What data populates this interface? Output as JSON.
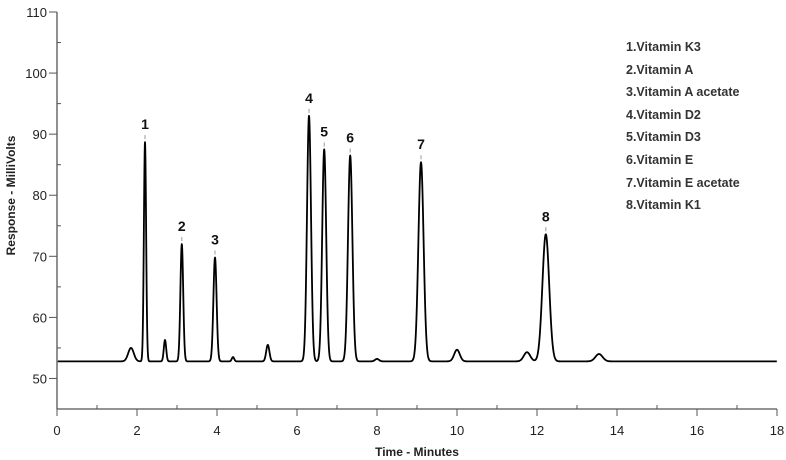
{
  "chart_data": {
    "type": "line",
    "title": "",
    "xlabel": "Time - Minutes",
    "ylabel": "Response - MilliVolts",
    "xlim": [
      0,
      18
    ],
    "ylim": [
      45,
      110
    ],
    "xticks": [
      0,
      2,
      4,
      6,
      8,
      10,
      12,
      14,
      16,
      18
    ],
    "yticks": [
      50,
      60,
      70,
      80,
      90,
      100,
      110
    ],
    "grid": false,
    "baseline": 52.8,
    "line_color": "#000000",
    "peaks": [
      {
        "label": "1",
        "x": 2.2,
        "y": 88.7
      },
      {
        "label": "2",
        "x": 3.12,
        "y": 72.0
      },
      {
        "label": "3",
        "x": 3.95,
        "y": 69.8
      },
      {
        "label": "4",
        "x": 6.3,
        "y": 93.0
      },
      {
        "label": "5",
        "x": 6.68,
        "y": 87.5
      },
      {
        "label": "6",
        "x": 7.33,
        "y": 86.5
      },
      {
        "label": "7",
        "x": 9.1,
        "y": 85.4
      },
      {
        "label": "8",
        "x": 12.22,
        "y": 73.6
      }
    ],
    "minor_peaks": [
      {
        "x": 1.85,
        "y": 55.0
      },
      {
        "x": 2.7,
        "y": 56.3
      },
      {
        "x": 4.4,
        "y": 53.5
      },
      {
        "x": 5.27,
        "y": 55.5
      },
      {
        "x": 8.0,
        "y": 53.2
      },
      {
        "x": 10.0,
        "y": 54.7
      },
      {
        "x": 11.75,
        "y": 54.3
      },
      {
        "x": 13.55,
        "y": 54.0
      }
    ],
    "legend": [
      "1.Vitamin K3",
      "2.Vitamin A",
      "3.Vitamin A acetate",
      "4.Vitamin D2",
      "5.Vitamin D3",
      "6.Vitamin E",
      "7.Vitamin E acetate",
      "8.Vitamin K1"
    ],
    "legend_position": "top-right"
  }
}
